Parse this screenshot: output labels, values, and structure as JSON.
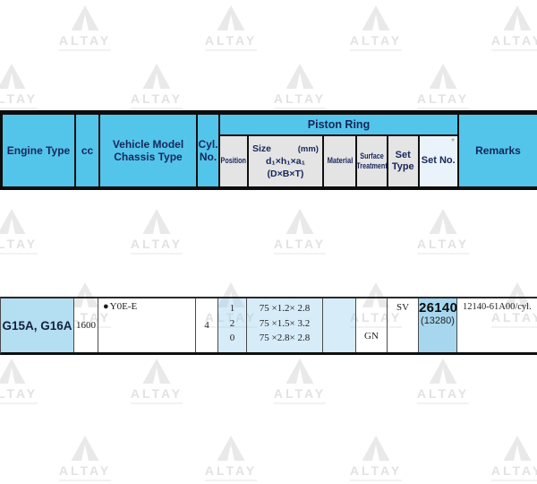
{
  "watermark": {
    "text": "ALTAY"
  },
  "colors": {
    "header_cyan": "#53c5ea",
    "subheader_gray": "#e4e4e4",
    "subheader_setno_blue": "#eaf3fa",
    "engine_cell_blue": "#b4def2",
    "setno_cell_blue": "#a6d7ef",
    "header_text_navy": "#17265a",
    "watermark_gray": "#e9e9e9"
  },
  "header": {
    "engine_type": "Engine Type",
    "cc": "cc",
    "vehicle_model_line1": "Vehicle Model",
    "vehicle_model_line2": "Chassis Type",
    "cyl_line1": "Cyl.",
    "cyl_line2": "No.",
    "piston_ring": "Piston Ring",
    "position": "Position",
    "size_label": "Size",
    "size_unit": "(mm)",
    "size_formula": "d₁×h₁×a₁",
    "size_formula2": "(D×B×T)",
    "material": "Material",
    "surface_line1": "Surface",
    "surface_line2": "Treatment",
    "set_type_line1": "Set",
    "set_type_line2": "Type",
    "set_no": "Set No.",
    "set_no_asterisk": "*",
    "remarks": "Remarks"
  },
  "row": {
    "engine_type": "G15A, G16A",
    "cc": "1600",
    "vehicle_model_bullet": "●",
    "vehicle_model": "Y0E-E",
    "cyl_no": "4",
    "positions": [
      "1",
      "2",
      "0"
    ],
    "sizes": [
      "75 ×1.2× 2.8",
      "75 ×1.5× 3.2",
      "75 ×2.8× 2.8"
    ],
    "material": "",
    "surface_treatment": "GN",
    "set_type": "SV",
    "set_no": "26140",
    "set_no_alt": "(13280)",
    "remarks": "12140-61A00/cyl."
  }
}
